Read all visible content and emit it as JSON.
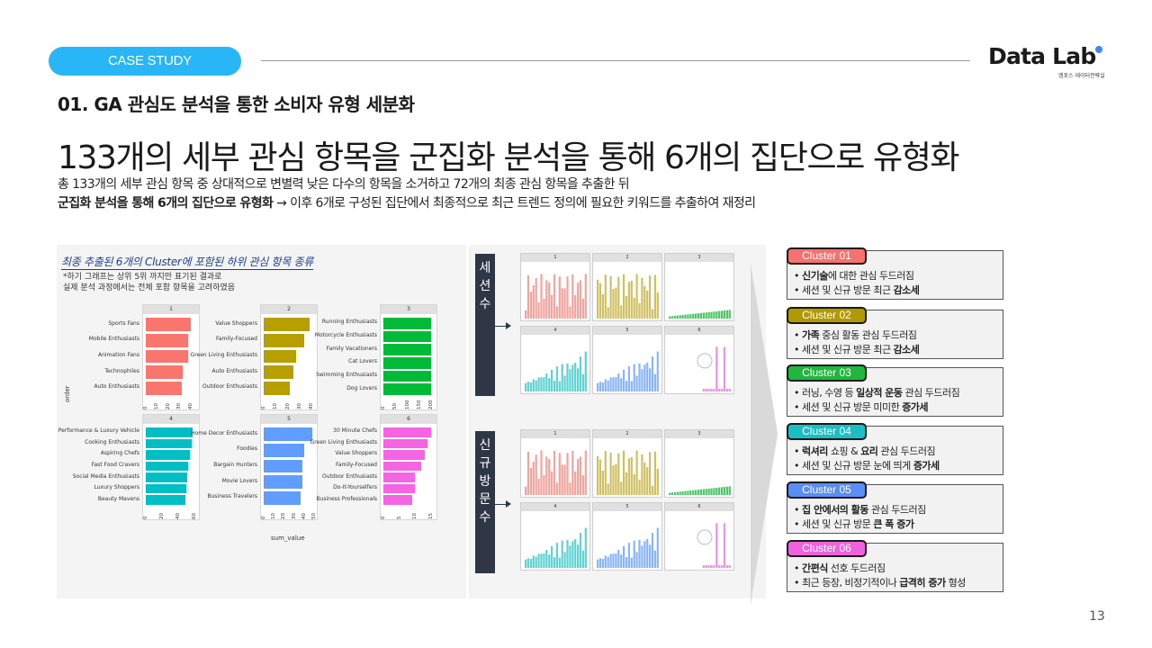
{
  "badge": "CASE STUDY",
  "logo": {
    "main": "Data Lab",
    "sub": "엠포스 데이터전략실"
  },
  "section_title": "01. GA 관심도 분석을 통한 소비자 유형 세분화",
  "headline": "133개의 세부 관심 항목을 군집화 분석을 통해 6개의 집단으로 유형화",
  "desc": {
    "line1": "총 133개의 세부 관심 항목 중 상대적으로 변별력 낮은 다수의 항목을 소거하고 72개의 최종 관심 항목을 추출한 뒤",
    "line2_bold": "군집화 분석을 통해 6개의 집단으로 유형화",
    "line2_rest": " → 이후 6개로 구성된 집단에서 최종적으로 최근 트렌드 정의에 필요한 키워드를 추출하여 재정리"
  },
  "left_panel": {
    "title": "최종 추출된 6개의 Cluster에 포함된 하위 관심 항목 종류",
    "note1": "*하기 그래프는 상위 5위 까지만 표기된 결과로",
    "note2": " 실제 분석 과정에서는 전체 포함 항목을 고려하였음",
    "xaxis": "sum_value",
    "yaxis": "order",
    "facets": [
      {
        "id": "1",
        "color": "#f8766d",
        "labels": [
          "Sports Fans",
          "Mobile Enthusiasts",
          "Animation Fans",
          "Technophiles",
          "Auto Enthusiasts"
        ],
        "values": [
          40,
          38,
          38,
          33,
          32
        ],
        "ticks": [
          "0",
          "10",
          "20",
          "30",
          "40"
        ],
        "max": 45
      },
      {
        "id": "2",
        "color": "#b79f00",
        "labels": [
          "Value Shoppers",
          "Family-Focused",
          "Green Living Enthusiasts",
          "Auto Enthusiasts",
          "Outdoor Enthusiasts"
        ],
        "values": [
          38,
          34,
          27,
          25,
          22
        ],
        "ticks": [
          "0",
          "10",
          "20",
          "30",
          "40"
        ],
        "max": 42
      },
      {
        "id": "3",
        "color": "#00ba38",
        "labels": [
          "Running Enthusiasts",
          "Motorcycle Enthusiasts",
          "Family Vacationers",
          "Cat Lovers",
          "Swimming Enthusiasts",
          "Dog Lovers"
        ],
        "values": [
          200,
          200,
          200,
          200,
          200,
          200
        ],
        "ticks": [
          "0",
          "50",
          "100",
          "150",
          "200"
        ],
        "max": 210
      },
      {
        "id": "4",
        "color": "#00bfc4",
        "labels": [
          "Performance & Luxury Vehicle",
          "Cooking Enthusiasts",
          "Aspiring Chefs",
          "Fast Food Cravers",
          "Social Media Enthusiasts",
          "Luxury Shoppers",
          "Beauty Mavens"
        ],
        "values": [
          58,
          56,
          54,
          52,
          51,
          50,
          49
        ],
        "ticks": [
          "0",
          "20",
          "40",
          "60"
        ],
        "max": 62
      },
      {
        "id": "5",
        "color": "#619cff",
        "labels": [
          "Home Decor Enthusiasts",
          "Foodies",
          "Bargain Hunters",
          "Movie Lovers",
          "Business Travelers"
        ],
        "values": [
          48,
          40,
          38,
          38,
          37
        ],
        "ticks": [
          "0",
          "10",
          "20",
          "30",
          "40",
          "50"
        ],
        "max": 50
      },
      {
        "id": "6",
        "color": "#f564e3",
        "labels": [
          "30 Minute Chefs",
          "Green Living Enthusiasts",
          "Value Shoppers",
          "Family-Focused",
          "Outdoor Enthusiasts",
          "Do-It-Yourselfers",
          "Business Professionals"
        ],
        "values": [
          15,
          14,
          13,
          12,
          10,
          10,
          9
        ],
        "ticks": [
          "0",
          "5",
          "10",
          "15"
        ],
        "max": 16
      }
    ]
  },
  "metric_labels": {
    "sessions": "세션 수",
    "new_visitors": "신규방문 수"
  },
  "mini_facet_ids": [
    "1",
    "2",
    "3",
    "4",
    "5",
    "6"
  ],
  "clusters": [
    {
      "tag": "Cluster 01",
      "color": "#f87171",
      "lines": [
        {
          "bold": "신기술",
          "rest": "에 대한 관심 두드러짐",
          "bold2": ""
        },
        {
          "bold": "",
          "rest": "세션 및 신규 방문 최근 ",
          "bold2": "감소세"
        }
      ]
    },
    {
      "tag": "Cluster 02",
      "color": "#b19a00",
      "lines": [
        {
          "bold": "가족",
          "rest": " 중심 활동 관심 두드러짐",
          "bold2": ""
        },
        {
          "bold": "",
          "rest": "세션 및 신규 방문 최근 ",
          "bold2": "감소세"
        }
      ]
    },
    {
      "tag": "Cluster 03",
      "color": "#1fb73c",
      "lines": [
        {
          "bold": "",
          "rest": "러닝, 수영 등 ",
          "bold2": "일상적 운동",
          "tail": " 관심 두드러짐"
        },
        {
          "bold": "",
          "rest": "세션 및 신규 방문 미미한 ",
          "bold2": "증가세"
        }
      ]
    },
    {
      "tag": "Cluster 04",
      "color": "#1bbfc3",
      "lines": [
        {
          "bold": "럭셔리",
          "rest": " 쇼핑 & ",
          "bold2": "요리",
          "tail": " 관심 두드러짐"
        },
        {
          "bold": "",
          "rest": "세션 및 신규 방문 눈에 띄게 ",
          "bold2": "증가세"
        }
      ]
    },
    {
      "tag": "Cluster 05",
      "color": "#5b8ef5",
      "lines": [
        {
          "bold": "집 안에서의 활동",
          "rest": " 관심 두드러짐",
          "bold2": ""
        },
        {
          "bold": "",
          "rest": "세션 및 신규 방문 ",
          "bold2": "큰 폭 증가"
        }
      ]
    },
    {
      "tag": "Cluster 06",
      "color": "#ee62dc",
      "lines": [
        {
          "bold": "간편식",
          "rest": " 선호 두드러짐",
          "bold2": ""
        },
        {
          "bold": "",
          "rest": "최근 등장, 비정기적이나 ",
          "bold2": "급격히 증가",
          "tail": " 형성"
        }
      ]
    }
  ],
  "page_number": "13"
}
